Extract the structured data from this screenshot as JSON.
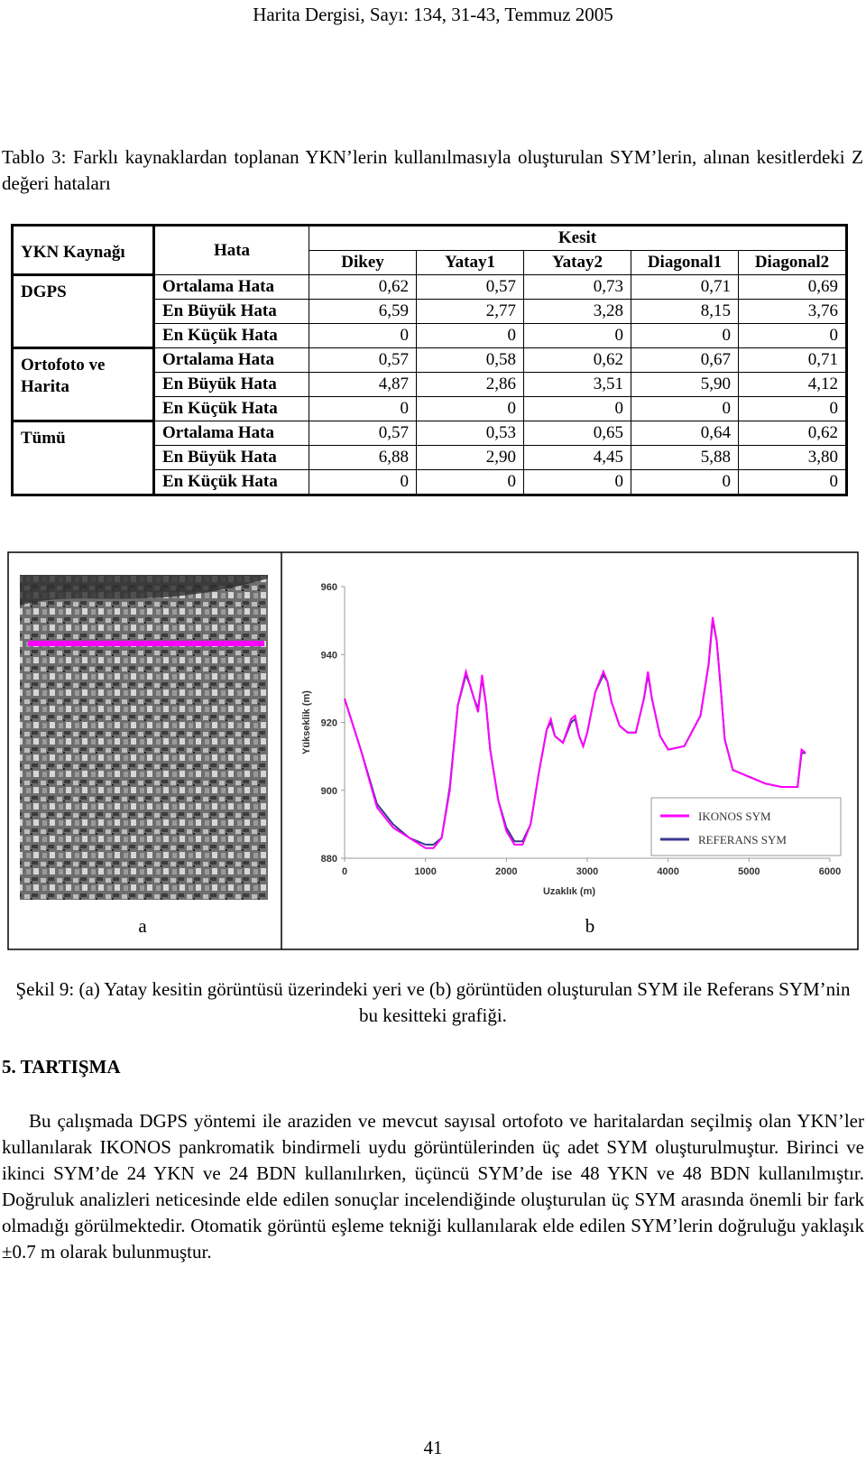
{
  "header": "Harita Dergisi, Sayı: 134, 31-43, Temmuz 2005",
  "table_caption": "Tablo 3: Farklı kaynaklardan toplanan YKN’lerin kullanılmasıyla oluşturulan SYM’lerin, alınan kesitlerdeki Z değeri hataları",
  "table": {
    "headers": {
      "source": "YKN Kaynağı",
      "error": "Hata",
      "group": "Kesit",
      "columns": [
        "Dikey",
        "Yatay1",
        "Yatay2",
        "Diagonal1",
        "Diagonal2"
      ]
    },
    "groups": [
      {
        "source": "DGPS",
        "rows": [
          {
            "error": "Ortalama Hata",
            "values": [
              "0,62",
              "0,57",
              "0,73",
              "0,71",
              "0,69"
            ]
          },
          {
            "error": "En Büyük Hata",
            "values": [
              "6,59",
              "2,77",
              "3,28",
              "8,15",
              "3,76"
            ]
          },
          {
            "error": "En Küçük Hata",
            "values": [
              "0",
              "0",
              "0",
              "0",
              "0"
            ]
          }
        ]
      },
      {
        "source": "Ortofoto ve Harita",
        "rows": [
          {
            "error": "Ortalama Hata",
            "values": [
              "0,57",
              "0,58",
              "0,62",
              "0,67",
              "0,71"
            ]
          },
          {
            "error": "En Büyük Hata",
            "values": [
              "4,87",
              "2,86",
              "3,51",
              "5,90",
              "4,12"
            ]
          },
          {
            "error": "En Küçük Hata",
            "values": [
              "0",
              "0",
              "0",
              "0",
              "0"
            ]
          }
        ]
      },
      {
        "source": "Tümü",
        "rows": [
          {
            "error": "Ortalama Hata",
            "values": [
              "0,57",
              "0,53",
              "0,65",
              "0,64",
              "0,62"
            ]
          },
          {
            "error": "En Büyük Hata",
            "values": [
              "6,88",
              "2,90",
              "4,45",
              "5,88",
              "3,80"
            ]
          },
          {
            "error": "En Küçük Hata",
            "values": [
              "0",
              "0",
              "0",
              "0",
              "0"
            ]
          }
        ]
      }
    ]
  },
  "chart_data": {
    "type": "line",
    "xlabel": "Uzaklık (m)",
    "ylabel": "Yükseklik (m)",
    "xlim": [
      0,
      6000
    ],
    "ylim": [
      880,
      960
    ],
    "xticks": [
      0,
      1000,
      2000,
      3000,
      4000,
      5000,
      6000
    ],
    "yticks": [
      880,
      900,
      920,
      940,
      960
    ],
    "legend": "lower right",
    "x": [
      0,
      200,
      400,
      600,
      800,
      1000,
      1100,
      1200,
      1300,
      1400,
      1500,
      1550,
      1600,
      1650,
      1700,
      1750,
      1800,
      1900,
      2000,
      2100,
      2200,
      2300,
      2400,
      2500,
      2550,
      2600,
      2700,
      2800,
      2850,
      2900,
      2950,
      3000,
      3100,
      3200,
      3250,
      3300,
      3400,
      3500,
      3600,
      3700,
      3750,
      3800,
      3900,
      4000,
      4200,
      4400,
      4500,
      4550,
      4600,
      4650,
      4700,
      4800,
      5000,
      5200,
      5400,
      5600,
      5650,
      5700
    ],
    "series": [
      {
        "name": "IKONOS SYM",
        "color": "#ff00ff",
        "values": [
          927,
          912,
          895,
          889,
          886,
          883,
          883,
          886,
          900,
          925,
          935,
          931,
          927,
          923,
          934,
          925,
          912,
          897,
          888,
          884,
          884,
          890,
          905,
          918,
          921,
          916,
          914,
          921,
          922,
          916,
          913,
          917,
          929,
          935,
          932,
          926,
          919,
          917,
          917,
          927,
          935,
          927,
          916,
          912,
          913,
          922,
          937,
          951,
          944,
          930,
          915,
          906,
          904,
          902,
          901,
          901,
          912,
          911
        ]
      },
      {
        "name": "REFERANS SYM",
        "color": "#3a3a8c",
        "values": [
          927,
          912,
          896,
          890,
          886,
          884,
          884,
          886,
          901,
          925,
          934,
          931,
          927,
          924,
          933,
          925,
          912,
          897,
          889,
          885,
          885,
          890,
          905,
          918,
          920,
          916,
          914,
          920,
          921,
          916,
          913,
          917,
          929,
          934,
          932,
          926,
          919,
          917,
          917,
          927,
          934,
          927,
          916,
          912,
          913,
          922,
          937,
          950,
          944,
          930,
          915,
          906,
          904,
          902,
          901,
          901,
          911,
          911
        ]
      }
    ]
  },
  "figure": {
    "panel_labels": [
      "a",
      "b"
    ],
    "caption": "Şekil 9: (a) Yatay kesitin görüntüsü üzerindeki yeri ve (b) görüntüden oluşturulan SYM ile Referans SYM’nin bu kesitteki grafiği."
  },
  "section": {
    "heading": "5. TARTIŞMA",
    "paragraph": "Bu çalışmada DGPS yöntemi ile araziden ve mevcut sayısal ortofoto ve haritalardan seçilmiş olan YKN’ler kullanılarak IKONOS pankromatik bindirmeli uydu görüntülerinden üç adet SYM oluşturulmuştur. Birinci ve ikinci SYM’de 24 YKN ve 24 BDN kullanılırken, üçüncü SYM’de ise 48 YKN ve 48 BDN kullanılmıştır. Doğruluk analizleri neticesinde elde edilen sonuçlar incelendiğinde oluşturulan üç SYM arasında önemli bir fark olmadığı görülmektedir. Otomatik görüntü eşleme tekniği kullanılarak elde edilen SYM’lerin doğruluğu yaklaşık ±0.7 m olarak bulunmuştur."
  },
  "page_number": "41"
}
